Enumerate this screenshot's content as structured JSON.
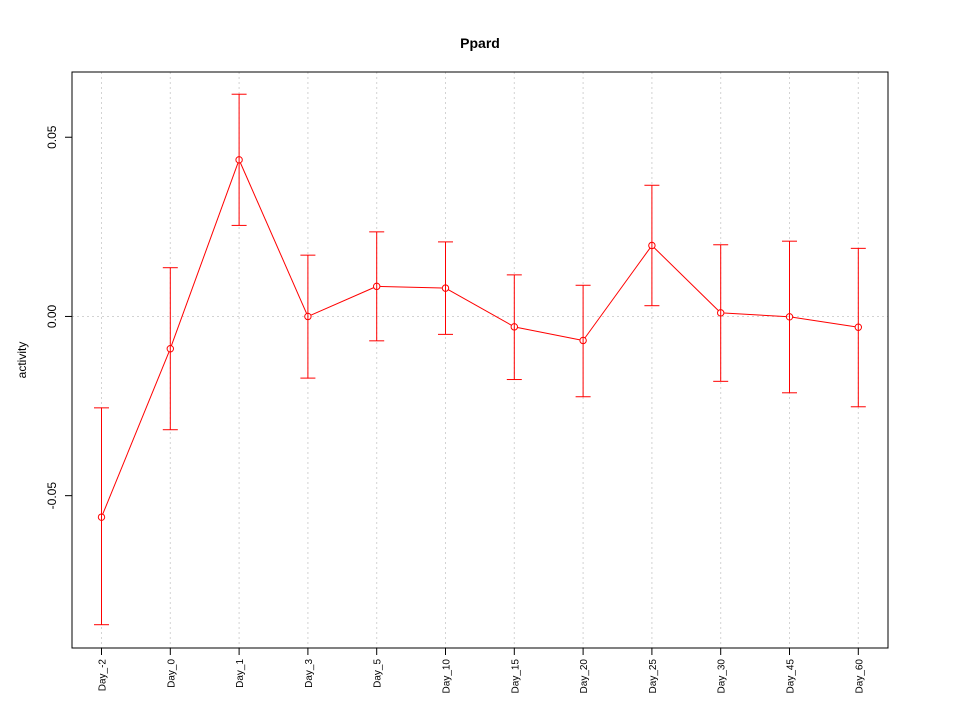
{
  "chart_data": {
    "type": "line",
    "title": "Ppard",
    "xlabel": "",
    "ylabel": "activity",
    "categories": [
      "Day_-2",
      "Day_0",
      "Day_1",
      "Day_3",
      "Day_5",
      "Day_10",
      "Day_15",
      "Day_20",
      "Day_25",
      "Day_30",
      "Day_45",
      "Day_60"
    ],
    "series": [
      {
        "values": [
          -0.056,
          -0.009,
          0.0437,
          0.0,
          0.0084,
          0.0079,
          -0.0029,
          -0.0067,
          0.0198,
          0.001,
          -0.0001,
          -0.003
        ],
        "upper": [
          -0.0255,
          0.0136,
          0.062,
          0.0171,
          0.0236,
          0.0208,
          0.0116,
          0.0087,
          0.0366,
          0.02,
          0.021,
          0.019
        ],
        "lower": [
          -0.086,
          -0.0316,
          0.0254,
          -0.0172,
          -0.0068,
          -0.005,
          -0.0176,
          -0.0224,
          0.003,
          -0.0181,
          -0.0213,
          -0.0252
        ]
      }
    ],
    "yticks": [
      -0.05,
      0.0,
      0.05
    ],
    "ytick_labels": [
      "-0.05",
      "0.00",
      "0.05"
    ],
    "ylim": [
      -0.0925,
      0.0682
    ],
    "grid": true,
    "colors": {
      "series": "#ff0000",
      "grid": "#d3d3d3",
      "frame": "#000000"
    }
  }
}
